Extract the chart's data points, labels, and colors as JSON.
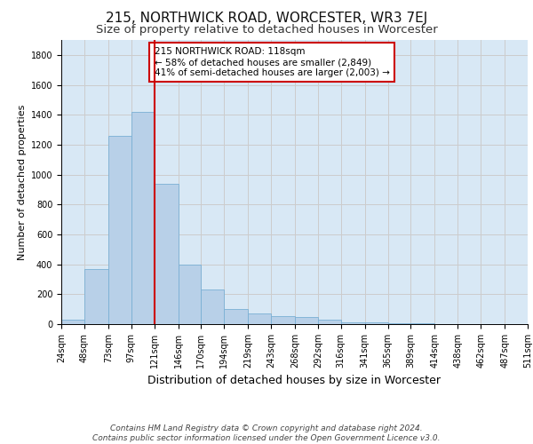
{
  "title1": "215, NORTHWICK ROAD, WORCESTER, WR3 7EJ",
  "title2": "Size of property relative to detached houses in Worcester",
  "xlabel": "Distribution of detached houses by size in Worcester",
  "ylabel": "Number of detached properties",
  "footer1": "Contains HM Land Registry data © Crown copyright and database right 2024.",
  "footer2": "Contains public sector information licensed under the Open Government Licence v3.0.",
  "annotation_line1": "215 NORTHWICK ROAD: 118sqm",
  "annotation_line2": "← 58% of detached houses are smaller (2,849)",
  "annotation_line3": "41% of semi-detached houses are larger (2,003) →",
  "bar_left_edges": [
    24,
    48,
    73,
    97,
    121,
    146,
    170,
    194,
    219,
    243,
    268,
    292,
    316,
    341,
    365,
    389,
    414,
    438,
    462,
    487
  ],
  "bar_widths": [
    24,
    25,
    24,
    24,
    25,
    24,
    24,
    25,
    24,
    25,
    24,
    24,
    25,
    24,
    24,
    25,
    24,
    24,
    25,
    24
  ],
  "bar_heights": [
    30,
    370,
    1260,
    1420,
    940,
    400,
    230,
    100,
    70,
    55,
    45,
    30,
    10,
    10,
    5,
    5,
    0,
    0,
    0,
    0
  ],
  "bar_color": "#b8d0e8",
  "bar_edge_color": "#7aafd4",
  "vline_x": 121,
  "vline_color": "#cc0000",
  "ylim": [
    0,
    1900
  ],
  "yticks": [
    0,
    200,
    400,
    600,
    800,
    1000,
    1200,
    1400,
    1600,
    1800
  ],
  "xtick_labels": [
    "24sqm",
    "48sqm",
    "73sqm",
    "97sqm",
    "121sqm",
    "146sqm",
    "170sqm",
    "194sqm",
    "219sqm",
    "243sqm",
    "268sqm",
    "292sqm",
    "316sqm",
    "341sqm",
    "365sqm",
    "389sqm",
    "414sqm",
    "438sqm",
    "462sqm",
    "487sqm",
    "511sqm"
  ],
  "grid_color": "#cccccc",
  "bg_color": "#d8e8f5",
  "title1_fontsize": 11,
  "title2_fontsize": 9.5,
  "ylabel_fontsize": 8,
  "xlabel_fontsize": 9,
  "tick_fontsize": 7,
  "footer_fontsize": 6.5,
  "annot_fontsize": 7.5
}
